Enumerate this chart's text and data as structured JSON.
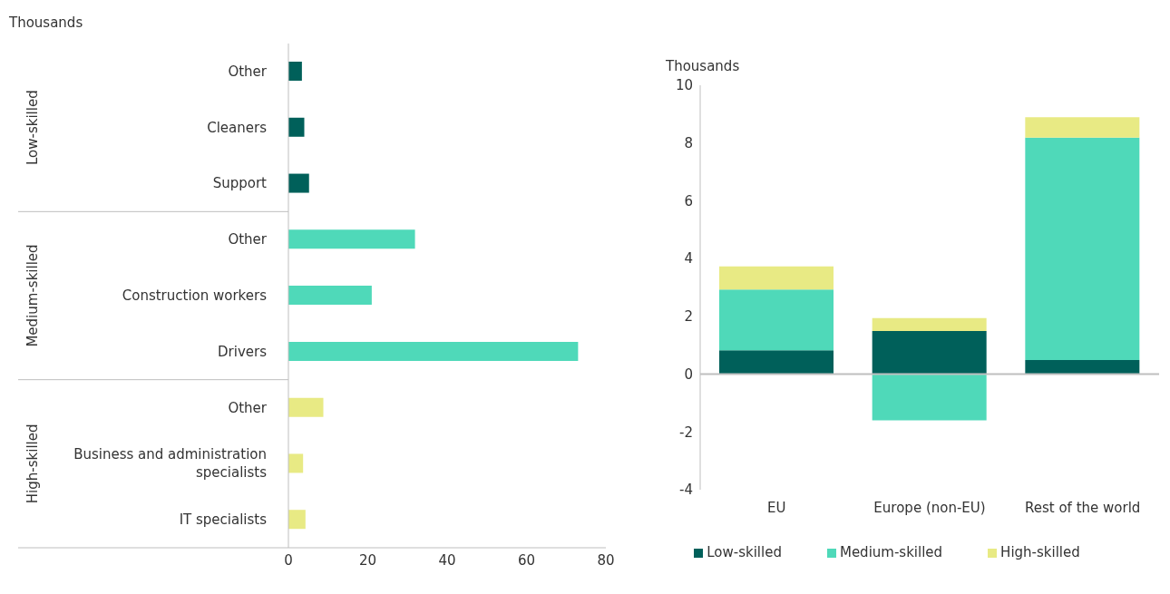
{
  "chart_data": [
    {
      "type": "bar",
      "orientation": "horizontal",
      "xlabel": "Thousands",
      "categories": [
        "Other",
        "Cleaners",
        "Support",
        "Other",
        "Construction workers",
        "Drivers",
        "Other",
        "Business and administration specialists",
        "IT specialists"
      ],
      "values": [
        3.4,
        4.0,
        5.2,
        31.9,
        21.0,
        73.0,
        8.8,
        3.7,
        4.3
      ],
      "colors": [
        "#00605a",
        "#00605a",
        "#00605a",
        "#4fd9b9",
        "#4fd9b9",
        "#4fd9b9",
        "#e8ea84",
        "#e8ea84",
        "#e8ea84"
      ],
      "annotations": [
        "Low-skilled",
        "Medium-skilled",
        "High-skilled"
      ],
      "xlim": [
        0,
        80
      ],
      "xticks": [
        0,
        20,
        40,
        60,
        80
      ],
      "legend": false
    },
    {
      "type": "bar",
      "stacked": true,
      "ylabel": "Thousands",
      "categories": [
        "EU",
        "Europe (non-EU)",
        "Rest of the world"
      ],
      "series": [
        {
          "name": "Low-skilled",
          "color": "#00605a",
          "values": [
            0.83,
            1.49,
            0.49
          ]
        },
        {
          "name": "Medium-skilled",
          "color": "#4fd9b9",
          "values": [
            2.1,
            -1.6,
            7.7
          ]
        },
        {
          "name": "High-skilled",
          "color": "#e8ea84",
          "values": [
            0.8,
            0.45,
            0.7
          ]
        }
      ],
      "ylim": [
        -4,
        10
      ],
      "yticks": [
        -4,
        -2,
        0,
        2,
        4,
        6,
        8,
        10
      ],
      "ref_lines": [
        {
          "axis": "y",
          "value": 0,
          "color": "#bfbfbf"
        }
      ],
      "legend": "bottom"
    }
  ]
}
